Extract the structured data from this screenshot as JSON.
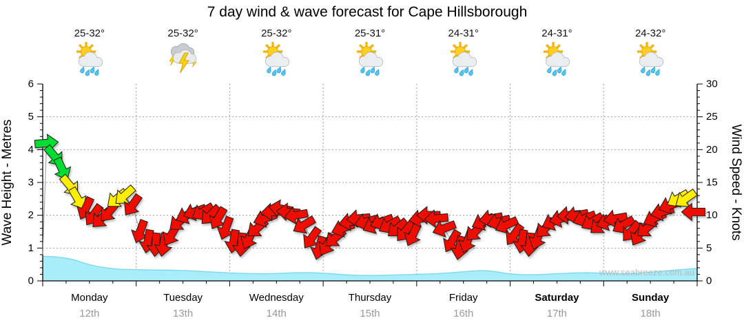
{
  "title": "7 day wind & wave forecast for Cape Hillsborough",
  "watermark": "www.seabreeze.com.au",
  "days": [
    {
      "name": "Monday",
      "date": "12th",
      "temp": "25-32°",
      "icon": "sun-cloud-rain-icon",
      "bold": false
    },
    {
      "name": "Tuesday",
      "date": "13th",
      "temp": "25-32°",
      "icon": "storm-icon",
      "bold": false
    },
    {
      "name": "Wednesday",
      "date": "14th",
      "temp": "25-32°",
      "icon": "sun-cloud-rain-icon",
      "bold": false
    },
    {
      "name": "Thursday",
      "date": "15th",
      "temp": "25-31°",
      "icon": "sun-cloud-rain-icon",
      "bold": false
    },
    {
      "name": "Friday",
      "date": "16th",
      "temp": "24-31°",
      "icon": "sun-cloud-rain-icon",
      "bold": false
    },
    {
      "name": "Saturday",
      "date": "17th",
      "temp": "24-31°",
      "icon": "sun-cloud-rain-icon",
      "bold": true
    },
    {
      "name": "Sunday",
      "date": "18th",
      "temp": "24-32°",
      "icon": "sun-cloud-rain-icon",
      "bold": true
    }
  ],
  "colors": {
    "wind_fresh": "#00dd33",
    "wind_moderate": "#ffee00",
    "wind_light": "#ee1100",
    "wave_fill": "#a8edfa",
    "wave_edge": "#7fd9ec",
    "grid": "#9e9e9e",
    "axis": "#000000",
    "day_text": "#000000",
    "date_text": "#999999",
    "watermark_text": "#b5bcbf",
    "temp_text": "#111111",
    "title_text": "#000000"
  },
  "chart_data": {
    "type": "line",
    "title": "7 day wind & wave forecast for Cape Hillsborough",
    "x_categories": [
      "Monday 12th",
      "Tuesday 13th",
      "Wednesday 14th",
      "Thursday 15th",
      "Friday 16th",
      "Saturday 17th",
      "Sunday 18th"
    ],
    "axes": {
      "left": {
        "label": "Wave Height - Metres",
        "lim": [
          0,
          6
        ],
        "ticks": [
          0,
          1,
          2,
          3,
          4,
          5,
          6
        ]
      },
      "right": {
        "label": "Wind Speed - Knots",
        "lim": [
          0,
          30
        ],
        "ticks": [
          0,
          5,
          10,
          15,
          20,
          25,
          30
        ]
      },
      "grid_m": [
        1,
        2,
        3,
        4,
        5
      ],
      "grid": true,
      "legend": "none"
    },
    "wind": {
      "name": "Wind speed & direction arrows",
      "unit": "knots",
      "samples_per_day": 12,
      "dir_convention": "screen degrees: 0 = pointing right (E), 90 = pointing down (S)",
      "color_thresholds": {
        "green_min_kn": 17,
        "yellow_min_kn": 12
      },
      "days": [
        {
          "day": "Monday",
          "kn": [
            21,
            19,
            17,
            14.5,
            12.5,
            11,
            10,
            9.5,
            10.5,
            12.5,
            13,
            11.5
          ],
          "dir_deg": [
            -5,
            50,
            65,
            50,
            60,
            115,
            125,
            135,
            130,
            140,
            138,
            125
          ]
        },
        {
          "day": "Tuesday",
          "kn": [
            7.5,
            6,
            5.5,
            5.5,
            7,
            9,
            10,
            10.5,
            10.5,
            10,
            9.5,
            8
          ],
          "dir_deg": [
            110,
            100,
            95,
            100,
            120,
            140,
            155,
            160,
            150,
            135,
            120,
            110
          ]
        },
        {
          "day": "Wednesday",
          "kn": [
            6,
            5.5,
            6.5,
            8,
            9.5,
            10.5,
            11,
            10.5,
            10,
            8.5,
            6.5,
            5
          ],
          "dir_deg": [
            100,
            95,
            115,
            140,
            160,
            175,
            190,
            185,
            170,
            150,
            125,
            105
          ]
        },
        {
          "day": "Thursday",
          "kn": [
            5.5,
            6.5,
            8,
            9,
            9.5,
            9,
            8.5,
            9,
            8.5,
            8,
            7.5,
            7
          ],
          "dir_deg": [
            120,
            140,
            160,
            170,
            175,
            165,
            155,
            160,
            150,
            140,
            130,
            115
          ]
        },
        {
          "day": "Friday",
          "kn": [
            9.5,
            10,
            9.5,
            8,
            6,
            5,
            6,
            7.5,
            9,
            9.5,
            9,
            8.5
          ],
          "dir_deg": [
            170,
            180,
            175,
            160,
            120,
            100,
            110,
            135,
            155,
            170,
            165,
            155
          ]
        },
        {
          "day": "Saturday",
          "kn": [
            7,
            6,
            5.5,
            6.5,
            8,
            9,
            9.5,
            10,
            10,
            9.5,
            9,
            8.5
          ],
          "dir_deg": [
            125,
            100,
            95,
            110,
            135,
            155,
            165,
            175,
            170,
            160,
            150,
            140
          ]
        },
        {
          "day": "Sunday",
          "kn": [
            9,
            9.5,
            8.5,
            7.5,
            7,
            8,
            9.5,
            10.5,
            11.5,
            12.5,
            12.5,
            10.5
          ],
          "dir_deg": [
            160,
            170,
            150,
            130,
            120,
            140,
            155,
            165,
            160,
            150,
            145,
            180
          ]
        }
      ]
    },
    "wave": {
      "name": "Wave height",
      "unit": "metres",
      "samples_per_day": 4,
      "note": "4 samples per day plus a final endpoint, left to right",
      "values": [
        0.75,
        0.73,
        0.48,
        0.36,
        0.34,
        0.33,
        0.32,
        0.28,
        0.24,
        0.22,
        0.22,
        0.26,
        0.24,
        0.18,
        0.16,
        0.18,
        0.2,
        0.22,
        0.28,
        0.33,
        0.2,
        0.18,
        0.22,
        0.25,
        0.24,
        0.21,
        0.26,
        0.33,
        0.38
      ]
    }
  }
}
